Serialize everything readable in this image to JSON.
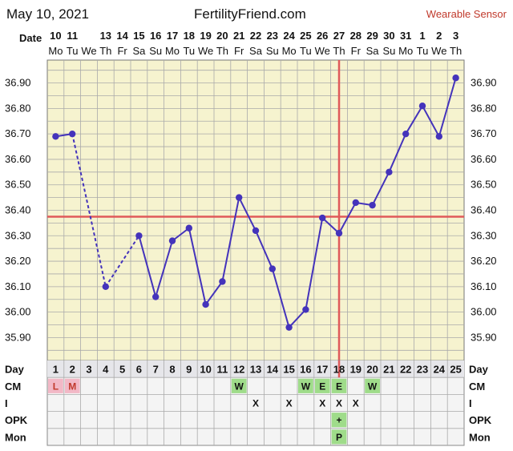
{
  "header": {
    "date": "May 10, 2021",
    "site": "FertilityFriend.com",
    "sensor": "Wearable Sensor"
  },
  "labels": {
    "date": "Date",
    "day": "Day",
    "cm": "CM",
    "i": "I",
    "opk": "OPK",
    "mon": "Mon"
  },
  "colors": {
    "plot_bg": "#f6f3cf",
    "grid": "#aaaaaa",
    "line": "#4433bb",
    "coverline": "#e05a5a",
    "period_cell": "#f2b8c6",
    "period_text": "#c0392b",
    "green_cell": "#9fdc8a",
    "table_bg": "#f4f4f4"
  },
  "chart_data": {
    "type": "line",
    "dates": [
      "10",
      "11",
      "13",
      "14",
      "15",
      "16",
      "17",
      "18",
      "19",
      "20",
      "21",
      "22",
      "23",
      "24",
      "25",
      "26",
      "27",
      "28",
      "29",
      "30",
      "31",
      "1",
      "2",
      "3"
    ],
    "weekdays": [
      "Mo",
      "Tu",
      "We",
      "Th",
      "Fr",
      "Sa",
      "Su",
      "Mo",
      "Tu",
      "We",
      "Th",
      "Fr",
      "Sa",
      "Su",
      "Mo",
      "Tu",
      "We",
      "Th",
      "Fr",
      "Sa",
      "Su",
      "Mo",
      "Tu",
      "We",
      "Th"
    ],
    "cycle_days": [
      "1",
      "2",
      "3",
      "4",
      "5",
      "6",
      "7",
      "8",
      "9",
      "10",
      "11",
      "12",
      "13",
      "14",
      "15",
      "16",
      "17",
      "18",
      "19",
      "20",
      "21",
      "22",
      "23",
      "24",
      "25"
    ],
    "date_columns": [
      1,
      2,
      4,
      5,
      6,
      7,
      8,
      9,
      10,
      11,
      12,
      13,
      14,
      15,
      16,
      17,
      18,
      19,
      20,
      21,
      22,
      23,
      24,
      25
    ],
    "series": [
      {
        "values": [
          {
            "day": 1,
            "temp": 36.69
          },
          {
            "day": 2,
            "temp": 36.7
          },
          {
            "day": 4,
            "temp": 36.1
          },
          {
            "day": 6,
            "temp": 36.3
          },
          {
            "day": 7,
            "temp": 36.06
          },
          {
            "day": 8,
            "temp": 36.28
          },
          {
            "day": 9,
            "temp": 36.33
          },
          {
            "day": 10,
            "temp": 36.03
          },
          {
            "day": 11,
            "temp": 36.12
          },
          {
            "day": 12,
            "temp": 36.45
          },
          {
            "day": 13,
            "temp": 36.32
          },
          {
            "day": 14,
            "temp": 36.17
          },
          {
            "day": 15,
            "temp": 35.94
          },
          {
            "day": 16,
            "temp": 36.01
          },
          {
            "day": 17,
            "temp": 36.37
          },
          {
            "day": 18,
            "temp": 36.31
          },
          {
            "day": 19,
            "temp": 36.43
          },
          {
            "day": 20,
            "temp": 36.42
          },
          {
            "day": 21,
            "temp": 36.55
          },
          {
            "day": 22,
            "temp": 36.7
          },
          {
            "day": 23,
            "temp": 36.81
          },
          {
            "day": 24,
            "temp": 36.69
          },
          {
            "day": 25,
            "temp": 36.92
          }
        ]
      }
    ],
    "dashed_segments": [
      [
        2,
        4
      ],
      [
        4,
        6
      ]
    ],
    "yticks": [
      "35.90",
      "36.00",
      "36.10",
      "36.20",
      "36.30",
      "36.40",
      "36.50",
      "36.60",
      "36.70",
      "36.80",
      "36.90"
    ],
    "ylim": [
      35.81,
      36.99
    ],
    "coverline": 36.375,
    "ovulation_day": 18,
    "grid": true,
    "rows": {
      "cm": [
        {
          "day": 1,
          "text": "L",
          "style": "period"
        },
        {
          "day": 2,
          "text": "M",
          "style": "period"
        },
        {
          "day": 12,
          "text": "W",
          "style": "green"
        },
        {
          "day": 16,
          "text": "W",
          "style": "green"
        },
        {
          "day": 17,
          "text": "E",
          "style": "green"
        },
        {
          "day": 18,
          "text": "E",
          "style": "green"
        },
        {
          "day": 20,
          "text": "W",
          "style": "green"
        }
      ],
      "i": [
        {
          "day": 13,
          "text": "X"
        },
        {
          "day": 15,
          "text": "X"
        },
        {
          "day": 17,
          "text": "X"
        },
        {
          "day": 18,
          "text": "X"
        },
        {
          "day": 19,
          "text": "X"
        }
      ],
      "opk": [
        {
          "day": 18,
          "text": "+",
          "style": "green"
        }
      ],
      "mon": [
        {
          "day": 18,
          "text": "P",
          "style": "green"
        }
      ]
    }
  }
}
